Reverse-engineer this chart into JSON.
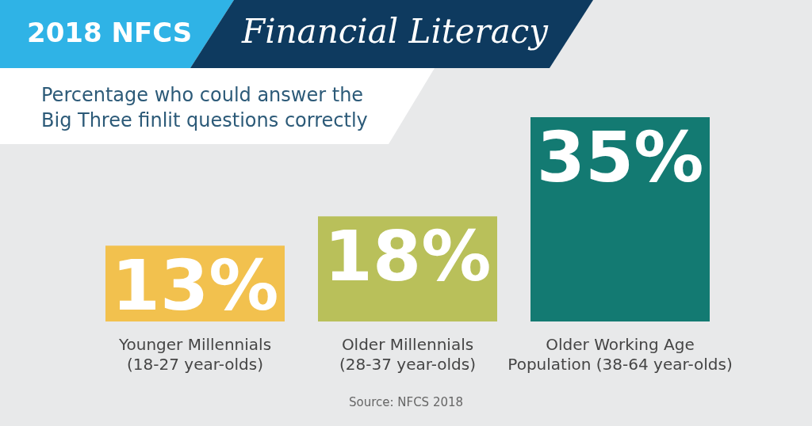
{
  "chart_data": {
    "type": "bar",
    "title": "Financial Literacy",
    "subtitle": "Percentage who could answer the Big Three finlit questions correctly",
    "annotations": [
      "2018 NFCS",
      "Source: NFCS 2018"
    ],
    "categories": [
      "Younger Millennials\n(18-27 year-olds)",
      "Older Millennials\n(28-37 year-olds)",
      "Older Working Age\nPopulation (38-64 year-olds)"
    ],
    "values": [
      13,
      18,
      35
    ],
    "colors": [
      "#f2c14e",
      "#b9c05a",
      "#137a72"
    ],
    "value_labels": [
      "13%",
      "18%",
      "35%"
    ]
  }
}
